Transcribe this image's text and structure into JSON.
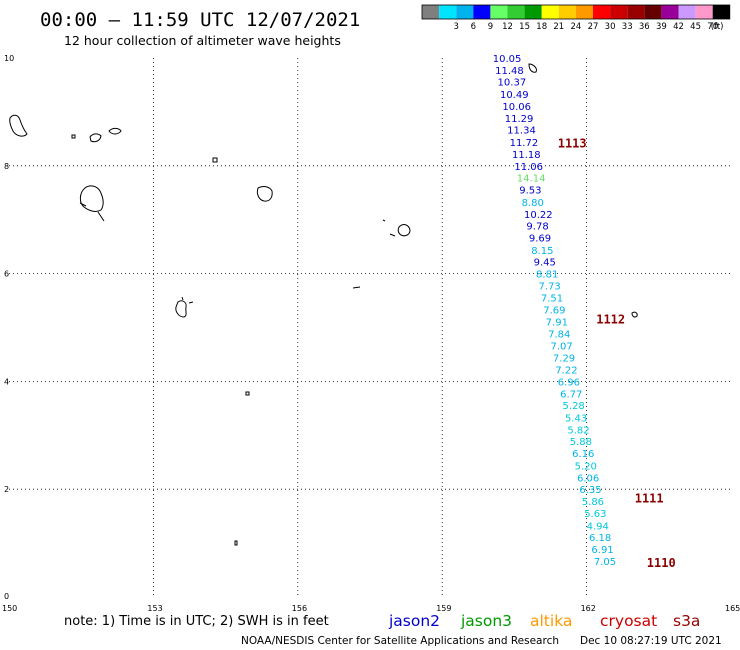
{
  "title": "00:00 – 11:59 UTC 12/07/2021",
  "subtitle": "12 hour collection of altimeter wave heights",
  "colorbar": {
    "unit": "(ft)",
    "bins": [
      {
        "label": "",
        "color": "#7f7f7f"
      },
      {
        "label": "3",
        "color": "#00e5ff"
      },
      {
        "label": "6",
        "color": "#00b2ee"
      },
      {
        "label": "9",
        "color": "#0000ff"
      },
      {
        "label": "12",
        "color": "#66ff66"
      },
      {
        "label": "15",
        "color": "#33cc33"
      },
      {
        "label": "18",
        "color": "#009900"
      },
      {
        "label": "21",
        "color": "#ffff00"
      },
      {
        "label": "24",
        "color": "#ffcc00"
      },
      {
        "label": "27",
        "color": "#ff9900"
      },
      {
        "label": "30",
        "color": "#ff0000"
      },
      {
        "label": "33",
        "color": "#cc0000"
      },
      {
        "label": "36",
        "color": "#990000"
      },
      {
        "label": "39",
        "color": "#660000"
      },
      {
        "label": "42",
        "color": "#990099"
      },
      {
        "label": "45",
        "color": "#cc99ff"
      },
      {
        "label": "70",
        "color": "#ff99cc"
      },
      {
        "label": "",
        "color": "#000000"
      }
    ]
  },
  "axes": {
    "lon_ticks": [
      "150",
      "153",
      "156",
      "159",
      "162",
      "165"
    ],
    "lat_ticks": [
      "10",
      "8",
      "6",
      "4",
      "2",
      "0"
    ]
  },
  "track": {
    "colors": {
      "jason2": "#0000cd",
      "light": "#00b4e6",
      "cyan": "#00c8dc",
      "green": "#66dd66"
    },
    "points": [
      {
        "v": "10.05",
        "lat": 10.0,
        "lon": 160.05,
        "c": "jason2"
      },
      {
        "v": "11.48",
        "lat": 9.78,
        "lon": 160.1,
        "c": "jason2"
      },
      {
        "v": "10.37",
        "lat": 9.56,
        "lon": 160.15,
        "c": "jason2"
      },
      {
        "v": "10.49",
        "lat": 9.33,
        "lon": 160.2,
        "c": "jason2"
      },
      {
        "v": "10.06",
        "lat": 9.11,
        "lon": 160.25,
        "c": "jason2"
      },
      {
        "v": "11.29",
        "lat": 8.89,
        "lon": 160.3,
        "c": "jason2"
      },
      {
        "v": "11.34",
        "lat": 8.67,
        "lon": 160.35,
        "c": "jason2"
      },
      {
        "v": "11.72",
        "lat": 8.44,
        "lon": 160.4,
        "c": "jason2"
      },
      {
        "v": "11.18",
        "lat": 8.22,
        "lon": 160.45,
        "c": "jason2"
      },
      {
        "v": "11.06",
        "lat": 8.0,
        "lon": 160.5,
        "c": "jason2"
      },
      {
        "v": "14.14",
        "lat": 7.78,
        "lon": 160.55,
        "c": "green"
      },
      {
        "v": "9.53",
        "lat": 7.56,
        "lon": 160.6,
        "c": "jason2"
      },
      {
        "v": "8.80",
        "lat": 7.33,
        "lon": 160.65,
        "c": "light"
      },
      {
        "v": "10.22",
        "lat": 7.11,
        "lon": 160.7,
        "c": "jason2"
      },
      {
        "v": "9.78",
        "lat": 6.89,
        "lon": 160.75,
        "c": "jason2"
      },
      {
        "v": "9.69",
        "lat": 6.67,
        "lon": 160.8,
        "c": "jason2"
      },
      {
        "v": "8.15",
        "lat": 6.44,
        "lon": 160.85,
        "c": "light"
      },
      {
        "v": "9.45",
        "lat": 6.22,
        "lon": 160.9,
        "c": "jason2"
      },
      {
        "v": "8.81",
        "lat": 6.0,
        "lon": 160.95,
        "c": "light"
      },
      {
        "v": "7.73",
        "lat": 5.78,
        "lon": 161.0,
        "c": "light"
      },
      {
        "v": "7.51",
        "lat": 5.56,
        "lon": 161.05,
        "c": "light"
      },
      {
        "v": "7.69",
        "lat": 5.33,
        "lon": 161.1,
        "c": "light"
      },
      {
        "v": "7.91",
        "lat": 5.11,
        "lon": 161.15,
        "c": "light"
      },
      {
        "v": "7.84",
        "lat": 4.89,
        "lon": 161.2,
        "c": "light"
      },
      {
        "v": "7.07",
        "lat": 4.67,
        "lon": 161.25,
        "c": "light"
      },
      {
        "v": "7.29",
        "lat": 4.44,
        "lon": 161.3,
        "c": "light"
      },
      {
        "v": "7.22",
        "lat": 4.22,
        "lon": 161.35,
        "c": "light"
      },
      {
        "v": "6.96",
        "lat": 4.0,
        "lon": 161.4,
        "c": "light"
      },
      {
        "v": "6.77",
        "lat": 3.78,
        "lon": 161.45,
        "c": "light"
      },
      {
        "v": "5.28",
        "lat": 3.56,
        "lon": 161.5,
        "c": "cyan"
      },
      {
        "v": "5.43",
        "lat": 3.33,
        "lon": 161.55,
        "c": "cyan"
      },
      {
        "v": "5.82",
        "lat": 3.11,
        "lon": 161.6,
        "c": "cyan"
      },
      {
        "v": "5.88",
        "lat": 2.89,
        "lon": 161.65,
        "c": "cyan"
      },
      {
        "v": "6.16",
        "lat": 2.67,
        "lon": 161.7,
        "c": "light"
      },
      {
        "v": "5.20",
        "lat": 2.44,
        "lon": 161.75,
        "c": "cyan"
      },
      {
        "v": "6.06",
        "lat": 2.22,
        "lon": 161.8,
        "c": "light"
      },
      {
        "v": "6.35",
        "lat": 2.0,
        "lon": 161.85,
        "c": "light"
      },
      {
        "v": "5.86",
        "lat": 1.78,
        "lon": 161.9,
        "c": "cyan"
      },
      {
        "v": "5.63",
        "lat": 1.56,
        "lon": 161.95,
        "c": "cyan"
      },
      {
        "v": "4.94",
        "lat": 1.33,
        "lon": 162.0,
        "c": "cyan"
      },
      {
        "v": "6.18",
        "lat": 1.11,
        "lon": 162.05,
        "c": "light"
      },
      {
        "v": "6.91",
        "lat": 0.89,
        "lon": 162.1,
        "c": "light"
      },
      {
        "v": "7.05",
        "lat": 0.67,
        "lon": 162.15,
        "c": "light"
      }
    ]
  },
  "pass_labels": [
    {
      "text": "1113",
      "lat": 8.41,
      "lon": 161.4
    },
    {
      "text": "1112",
      "lat": 5.15,
      "lon": 162.2
    },
    {
      "text": "1111",
      "lat": 1.83,
      "lon": 163.0
    },
    {
      "text": "1110",
      "lat": 0.63,
      "lon": 163.25
    }
  ],
  "footer": {
    "note": "note: 1) Time is in UTC; 2) SWH is in feet",
    "satellites": [
      {
        "name": "jason2",
        "color": "#0000cd"
      },
      {
        "name": "jason3",
        "color": "#009900"
      },
      {
        "name": "altika",
        "color": "#ff9900"
      },
      {
        "name": "cryosat",
        "color": "#cc0000"
      },
      {
        "name": "s3a",
        "color": "#990000"
      }
    ],
    "credit": "NOAA/NESDIS Center for Satellite Applications and Research",
    "generated": "Dec 10 08:27:19 UTC 2021"
  }
}
